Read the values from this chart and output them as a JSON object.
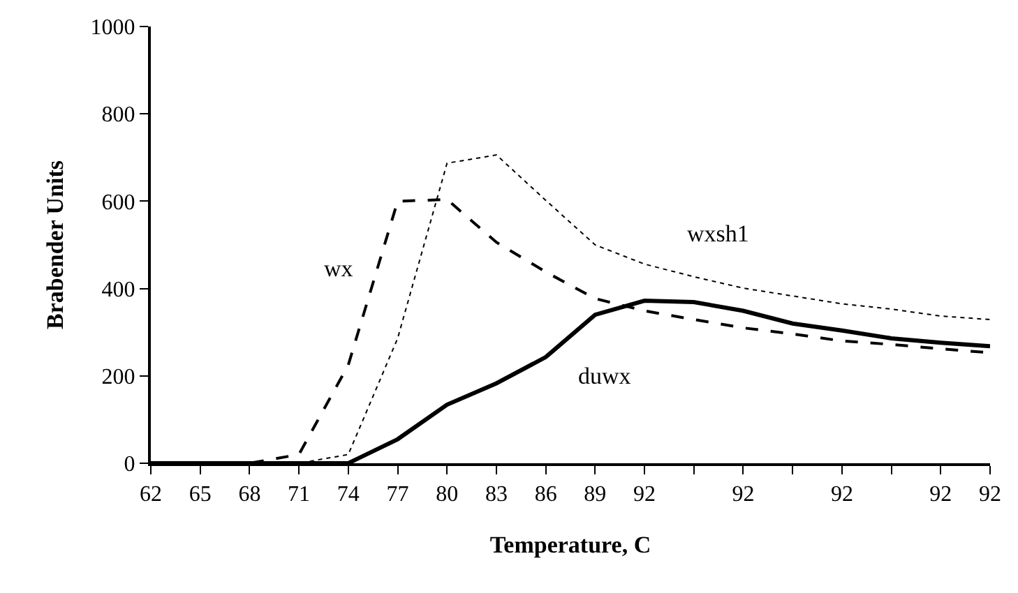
{
  "chart_data": {
    "type": "line",
    "xlabel": "Temperature, C",
    "ylabel": "Brabender Units",
    "categories": [
      "62",
      "65",
      "68",
      "71",
      "74",
      "77",
      "80",
      "83",
      "86",
      "89",
      "92",
      null,
      "92",
      null,
      "92",
      null,
      "92",
      "92"
    ],
    "ylim": [
      0,
      1000
    ],
    "yticks": [
      0,
      200,
      400,
      600,
      800,
      1000
    ],
    "legend": false,
    "marker": "none",
    "series": [
      {
        "name": "wx",
        "color": "#000000",
        "line_style": "dashed",
        "values": [
          0,
          0,
          0,
          20,
          225,
          600,
          604,
          506,
          438,
          377,
          349,
          329,
          310,
          296,
          280,
          272,
          262,
          253
        ]
      },
      {
        "name": "wxsh1",
        "color": "#000000",
        "line_style": "dotted",
        "values": [
          0,
          0,
          0,
          0,
          20,
          286,
          687,
          706,
          602,
          500,
          456,
          427,
          401,
          383,
          365,
          353,
          337,
          329
        ]
      },
      {
        "name": "duwx",
        "color": "#000000",
        "line_style": "solid",
        "values": [
          0,
          0,
          0,
          0,
          0,
          55,
          134,
          183,
          243,
          340,
          372,
          369,
          349,
          320,
          304,
          286,
          276,
          268
        ]
      }
    ]
  }
}
